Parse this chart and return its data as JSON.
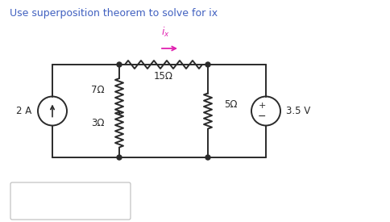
{
  "title": "Use superposition theorem to solve for ix",
  "bg_color": "#fdf5e0",
  "outer_bg": "#ffffff",
  "title_color": "#4060c0",
  "ix_color": "#e020b0",
  "wire_color": "#2a2a2a",
  "resistor_color": "#2a2a2a",
  "node_color": "#2a2a2a",
  "label_color": "#2a2a2a",
  "res7_label": "7Ω",
  "res3_label": "3Ω",
  "res15_label": "15Ω",
  "res5_label": "5Ω",
  "vsrc_label": "3.5 V",
  "isrc_label": "2 A",
  "ix_label": "i_x"
}
